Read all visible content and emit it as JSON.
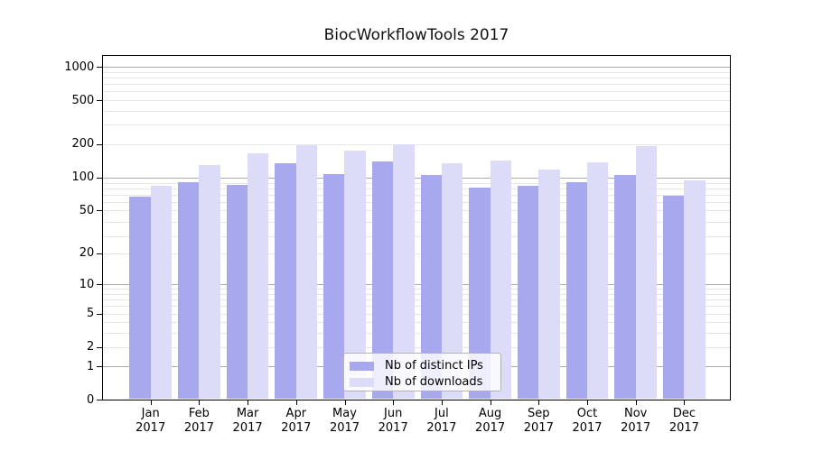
{
  "chart_data": {
    "type": "bar",
    "title": "BiocWorkflowTools 2017",
    "categories": [
      "Jan",
      "Feb",
      "Mar",
      "Apr",
      "May",
      "Jun",
      "Jul",
      "Aug",
      "Sep",
      "Oct",
      "Nov",
      "Dec"
    ],
    "category_year": "2017",
    "series": [
      {
        "name": "Nb of distinct IPs",
        "color": "#a8a8ee",
        "values": [
          67,
          90,
          86,
          135,
          108,
          140,
          105,
          81,
          84,
          91,
          106,
          68
        ]
      },
      {
        "name": "Nb of downloads",
        "color": "#dcdcf8",
        "values": [
          84,
          129,
          165,
          196,
          176,
          198,
          134,
          141,
          118,
          137,
          193,
          93
        ]
      }
    ],
    "yscale": "log1p",
    "y_ticks": [
      0,
      1,
      2,
      5,
      10,
      20,
      50,
      100,
      200,
      500,
      1000
    ],
    "y_major_grid_values": [
      1,
      10,
      100,
      1000
    ],
    "ylim": [
      0,
      1276
    ],
    "xlabel": "",
    "ylabel": "",
    "grid": true,
    "legend_position": "lower center inside plot",
    "grid_major_color": "#ababab",
    "grid_minor_color": "#e6e6e6",
    "axis_color": "#000000"
  }
}
